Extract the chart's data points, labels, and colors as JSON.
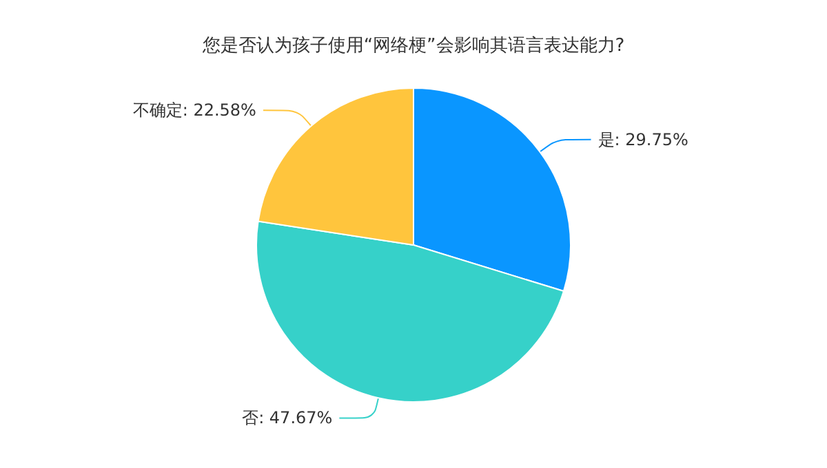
{
  "chart_data": {
    "type": "pie",
    "title": "您是否认为孩子使用“网络梗”会影响其语言表达能力?",
    "categories": [
      "是",
      "否",
      "不确定"
    ],
    "values": [
      29.75,
      47.67,
      22.58
    ],
    "value_labels": [
      "29.75%",
      "47.67%",
      "22.58%"
    ],
    "colors": [
      "#0a96ff",
      "#36d1c9",
      "#ffc53d"
    ],
    "legend": false
  }
}
